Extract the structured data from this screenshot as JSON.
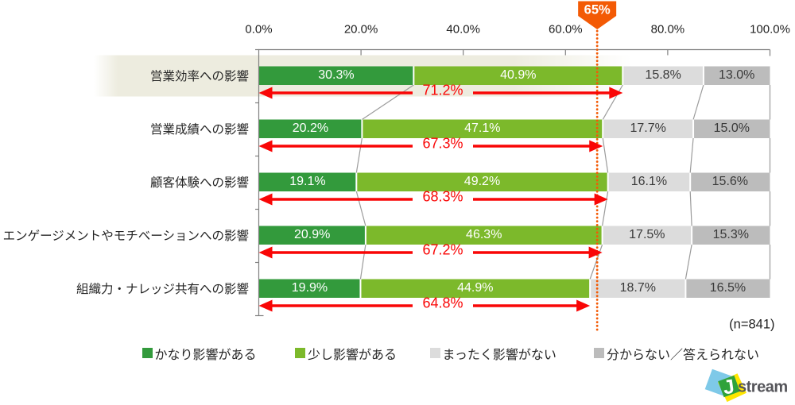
{
  "chart_data": {
    "type": "bar",
    "orientation": "horizontal-stacked",
    "categories": [
      "営業効率への影響",
      "営業成績への影響",
      "顧客体験への影響",
      "エンゲージメントやモチベーションへの影響",
      "組織力・ナレッジ共有への影響"
    ],
    "series": [
      {
        "name": "かなり影響がある",
        "values": [
          30.3,
          20.2,
          19.1,
          20.9,
          19.9
        ]
      },
      {
        "name": "少し影響がある",
        "values": [
          40.9,
          47.1,
          49.2,
          46.3,
          44.9
        ]
      },
      {
        "name": "まったく影響がない",
        "values": [
          15.8,
          17.7,
          16.1,
          17.5,
          18.7
        ]
      },
      {
        "name": "分からない／答えられない",
        "values": [
          13.0,
          15.0,
          15.6,
          15.3,
          16.5
        ]
      }
    ],
    "impact_totals": [
      71.2,
      67.3,
      68.3,
      67.2,
      64.8
    ],
    "x_axis": {
      "tick_labels": [
        "0.0%",
        "20.0%",
        "40.0%",
        "60.0%",
        "80.0%",
        "100.0%"
      ],
      "range": [
        0,
        100
      ]
    },
    "marker": {
      "label": "65%",
      "position_percent": 66.2
    },
    "note": "(n=841)",
    "legend_position": "bottom",
    "highlighted_row": 0
  },
  "colors": {
    "series": [
      "#339A3C",
      "#7CB92B",
      "#DCDCDC",
      "#BCBCBC"
    ],
    "label_on_green": "#FFFFFF",
    "label_on_gray": "#3A3A3A",
    "arrow_red": "#F90606",
    "marker_orange": "#F35A05",
    "highlight_band": "#EDECDF",
    "axis_line": "#808080",
    "connector_line": "#9B9B9B",
    "text": "#262626"
  },
  "branding": {
    "logo_letter": "J",
    "logo_text": "stream",
    "logo_blue": "#7EC9E8",
    "logo_yellow": "#FFE600",
    "logo_green": "#2FA23B",
    "logo_text_color": "#55555A"
  }
}
